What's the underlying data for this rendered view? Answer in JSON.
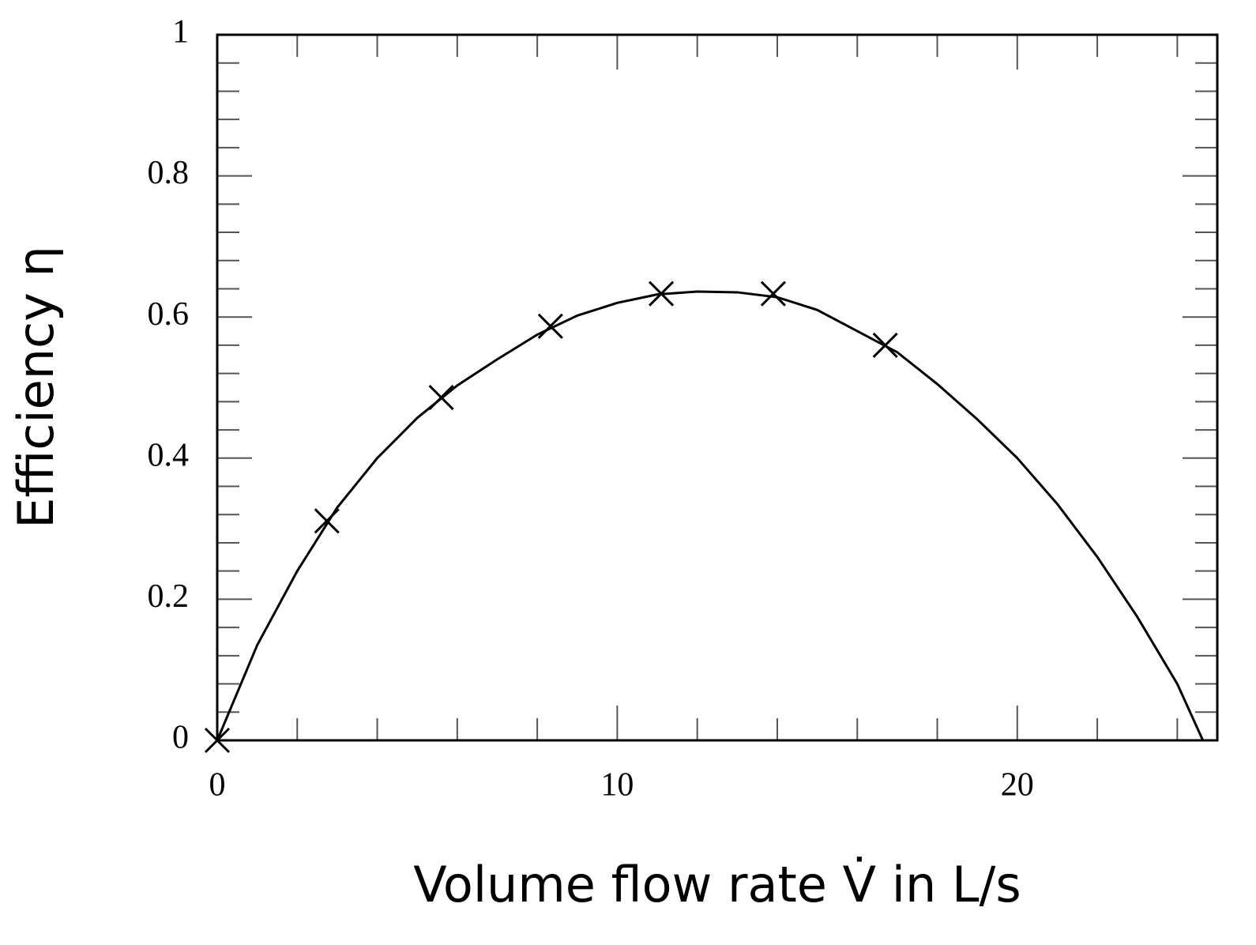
{
  "chart_data": {
    "type": "line",
    "xlabel": "Volume flow rate V̇ in L/s",
    "ylabel": "Efficiency η",
    "xlim": [
      0,
      25
    ],
    "ylim": [
      0,
      1
    ],
    "xticks": [
      0,
      10,
      20
    ],
    "yticks": [
      0,
      0.2,
      0.4,
      0.6,
      0.8,
      1
    ],
    "xminorticks": [
      2,
      4,
      6,
      8,
      12,
      14,
      16,
      18,
      22,
      24
    ],
    "yminorticks": [
      0.04,
      0.08,
      0.12,
      0.16,
      0.24,
      0.28,
      0.32,
      0.36,
      0.44,
      0.48,
      0.52,
      0.56,
      0.64,
      0.68,
      0.72,
      0.76,
      0.84,
      0.88,
      0.92,
      0.96
    ],
    "grid": false,
    "series": [
      {
        "color": "#000000",
        "marker": "x",
        "line": false,
        "x": [
          0,
          2.74,
          5.6,
          8.33,
          11.1,
          13.9,
          16.7
        ],
        "values": [
          0,
          0.311,
          0.486,
          0.587,
          0.633,
          0.633,
          0.56
        ]
      },
      {
        "color": "#000000",
        "marker": "none",
        "line": true,
        "x": [
          0,
          1,
          2,
          3,
          4,
          5,
          6,
          7,
          8,
          9,
          10,
          11,
          12,
          13,
          14,
          15,
          16,
          17,
          18,
          19,
          20,
          21,
          22,
          23,
          24,
          24.64
        ],
        "values": [
          0,
          0.135,
          0.24,
          0.33,
          0.4,
          0.457,
          0.503,
          0.54,
          0.575,
          0.602,
          0.62,
          0.632,
          0.636,
          0.635,
          0.628,
          0.61,
          0.58,
          0.55,
          0.505,
          0.455,
          0.4,
          0.335,
          0.26,
          0.175,
          0.08,
          0
        ]
      }
    ]
  }
}
